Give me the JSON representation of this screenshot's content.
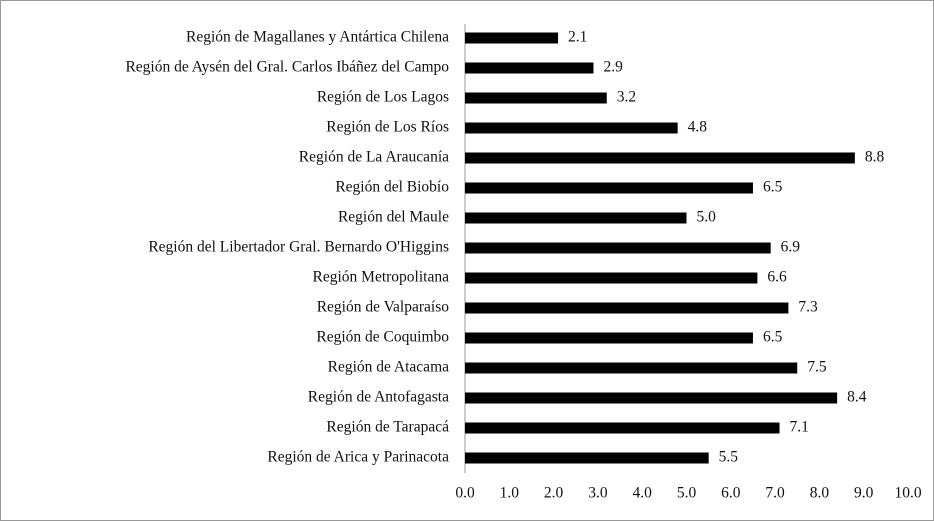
{
  "chart_data": {
    "type": "bar",
    "orientation": "horizontal",
    "categories": [
      "Región de Magallanes y Antártica Chilena",
      "Región de Aysén del Gral. Carlos Ibáñez del Campo",
      "Región de Los Lagos",
      "Región de Los Ríos",
      "Región de La Araucanía",
      "Región del Biobío",
      "Región del Maule",
      "Región del Libertador Gral. Bernardo O'Higgins",
      "Región Metropolitana",
      "Región de Valparaíso",
      "Región de Coquimbo",
      "Región de Atacama",
      "Región de Antofagasta",
      "Región de Tarapacá",
      "Región de Arica y Parinacota"
    ],
    "values": [
      2.1,
      2.9,
      3.2,
      4.8,
      8.8,
      6.5,
      5.0,
      6.9,
      6.6,
      7.3,
      6.5,
      7.5,
      8.4,
      7.1,
      5.5
    ],
    "value_labels": [
      "2.1",
      "2.9",
      "3.2",
      "4.8",
      "8.8",
      "6.5",
      "5.0",
      "6.9",
      "6.6",
      "7.3",
      "6.5",
      "7.5",
      "8.4",
      "7.1",
      "5.5"
    ],
    "color": "#000000",
    "xlim": [
      0,
      10
    ],
    "xticks": [
      {
        "value": 0,
        "label": "0.0"
      },
      {
        "value": 1,
        "label": "1.0"
      },
      {
        "value": 2,
        "label": "2.0"
      },
      {
        "value": 3,
        "label": "3.0"
      },
      {
        "value": 4,
        "label": "4.0"
      },
      {
        "value": 5,
        "label": "5.0"
      },
      {
        "value": 6,
        "label": "6.0"
      },
      {
        "value": 7,
        "label": "7.0"
      },
      {
        "value": 8,
        "label": "8.0"
      },
      {
        "value": 9,
        "label": "9.0"
      },
      {
        "value": 10,
        "label": "10.0"
      }
    ],
    "grid": false
  }
}
